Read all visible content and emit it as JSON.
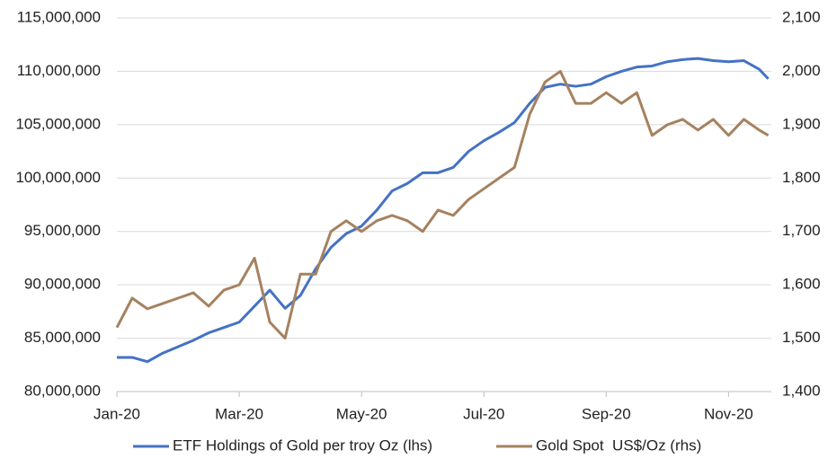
{
  "chart_data": {
    "type": "line",
    "x": [
      0,
      0.25,
      0.5,
      0.75,
      1,
      1.25,
      1.5,
      1.75,
      2,
      2.25,
      2.5,
      2.75,
      3,
      3.25,
      3.5,
      3.75,
      4,
      4.25,
      4.5,
      4.75,
      5,
      5.25,
      5.5,
      5.75,
      6,
      6.25,
      6.5,
      6.75,
      7,
      7.25,
      7.5,
      7.75,
      8,
      8.25,
      8.5,
      8.75,
      9,
      9.25,
      9.5,
      9.75,
      10,
      10.25,
      10.5,
      10.65
    ],
    "xlim": [
      0,
      10.7
    ],
    "xticks": [
      {
        "value": 0,
        "label": "Jan-20"
      },
      {
        "value": 2,
        "label": "Mar-20"
      },
      {
        "value": 4,
        "label": "May-20"
      },
      {
        "value": 6,
        "label": "Jul-20"
      },
      {
        "value": 8,
        "label": "Sep-20"
      },
      {
        "value": 10,
        "label": "Nov-20"
      }
    ],
    "ylim": [
      80000000,
      115000000
    ],
    "yticks": [
      {
        "value": 80000000,
        "label": "80,000,000"
      },
      {
        "value": 85000000,
        "label": "85,000,000"
      },
      {
        "value": 90000000,
        "label": "90,000,000"
      },
      {
        "value": 95000000,
        "label": "95,000,000"
      },
      {
        "value": 100000000,
        "label": "100,000,000"
      },
      {
        "value": 105000000,
        "label": "105,000,000"
      },
      {
        "value": 110000000,
        "label": "110,000,000"
      },
      {
        "value": 115000000,
        "label": "115,000,000"
      }
    ],
    "y2lim": [
      1400,
      2100
    ],
    "y2ticks": [
      {
        "value": 1400,
        "label": "1,400"
      },
      {
        "value": 1500,
        "label": "1,500"
      },
      {
        "value": 1600,
        "label": "1,600"
      },
      {
        "value": 1700,
        "label": "1,700"
      },
      {
        "value": 1800,
        "label": "1,800"
      },
      {
        "value": 1900,
        "label": "1,900"
      },
      {
        "value": 2000,
        "label": "2,000"
      },
      {
        "value": 2100,
        "label": "2,100"
      }
    ],
    "grid": true,
    "legend": "bottom",
    "series": [
      {
        "name": "ETF Holdings of Gold per troy Oz (lhs)",
        "color": "#4472c4",
        "values": [
          83200000,
          83200000,
          82800000,
          83600000,
          84200000,
          84800000,
          85500000,
          86000000,
          86500000,
          88000000,
          89500000,
          87800000,
          89000000,
          91500000,
          93500000,
          94800000,
          95500000,
          97000000,
          98800000,
          99500000,
          100500000,
          100500000,
          101000000,
          102500000,
          103500000,
          104300000,
          105200000,
          107000000,
          108500000,
          108800000,
          108600000,
          108800000,
          109500000,
          110000000,
          110400000,
          110500000,
          110900000,
          111100000,
          111200000,
          111000000,
          110900000,
          111000000,
          110200000,
          109300000
        ]
      },
      {
        "name": "Gold Spot  US$/Oz (rhs)",
        "color": "#a5825f",
        "axis": "y2",
        "values": [
          1520,
          1575,
          1555,
          1565,
          1575,
          1585,
          1560,
          1590,
          1600,
          1650,
          1530,
          1500,
          1620,
          1620,
          1700,
          1720,
          1700,
          1720,
          1730,
          1720,
          1700,
          1740,
          1730,
          1760,
          1780,
          1800,
          1820,
          1920,
          1980,
          2000,
          1940,
          1940,
          1960,
          1940,
          1960,
          1880,
          1900,
          1910,
          1890,
          1910,
          1880,
          1910,
          1890,
          1880
        ]
      }
    ]
  }
}
